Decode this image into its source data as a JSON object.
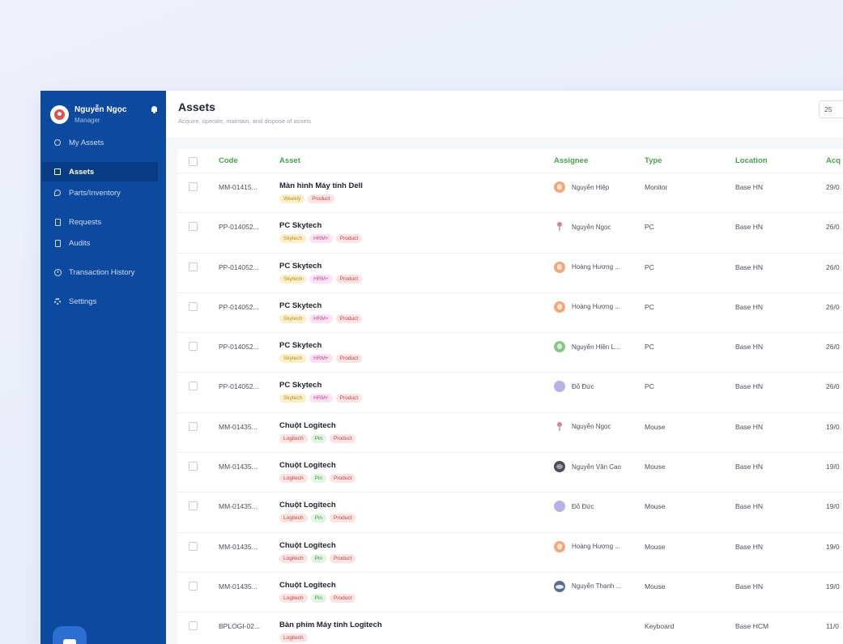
{
  "profile": {
    "name": "Nguyễn Ngọc",
    "role": "Manager"
  },
  "nav": {
    "my_assets": "My Assets",
    "assets": "Assets",
    "parts": "Parts/Inventory",
    "requests": "Requests",
    "audits": "Audits",
    "history": "Transaction History",
    "settings": "Settings"
  },
  "header": {
    "title": "Assets",
    "subtitle": "Acquire, operate, maintain, and dispose of assets",
    "filter_value": "25"
  },
  "table": {
    "headers": {
      "code": "Code",
      "asset": "Asset",
      "assignee": "Assignee",
      "type": "Type",
      "location": "Location",
      "acq": "Acq"
    },
    "rows": [
      {
        "code": "MM-01415...",
        "name": "Màn hình Máy tính Dell",
        "tags": [
          {
            "text": "Weekly",
            "color": "yellow"
          },
          {
            "text": "Product",
            "color": "red"
          }
        ],
        "assignee": "Nguyễn Hiệp",
        "avatar": "orange",
        "type": "Monitor",
        "location": "Base HN",
        "acq": "29/0"
      },
      {
        "code": "PP-014052...",
        "name": "PC Skytech",
        "tags": [
          {
            "text": "Skytech",
            "color": "yellow"
          },
          {
            "text": "HRM+",
            "color": "pink"
          },
          {
            "text": "Product",
            "color": "red"
          }
        ],
        "assignee": "Nguyễn Ngọc",
        "avatar": "pin",
        "type": "PC",
        "location": "Base HN",
        "acq": "26/0"
      },
      {
        "code": "PP-014052...",
        "name": "PC Skytech",
        "tags": [
          {
            "text": "Skytech",
            "color": "yellow"
          },
          {
            "text": "HRM+",
            "color": "pink"
          },
          {
            "text": "Product",
            "color": "red"
          }
        ],
        "assignee": "Hoàng Hương ...",
        "avatar": "orange",
        "type": "PC",
        "location": "Base HN",
        "acq": "26/0"
      },
      {
        "code": "PP-014052...",
        "name": "PC Skytech",
        "tags": [
          {
            "text": "Skytech",
            "color": "yellow"
          },
          {
            "text": "HRM+",
            "color": "pink"
          },
          {
            "text": "Product",
            "color": "red"
          }
        ],
        "assignee": "Hoàng Hương ...",
        "avatar": "orange",
        "type": "PC",
        "location": "Base HN",
        "acq": "26/0"
      },
      {
        "code": "PP-014052...",
        "name": "PC Skytech",
        "tags": [
          {
            "text": "Skytech",
            "color": "yellow"
          },
          {
            "text": "HRM+",
            "color": "pink"
          },
          {
            "text": "Product",
            "color": "red"
          }
        ],
        "assignee": "Nguyễn Hiền L...",
        "avatar": "green",
        "type": "PC",
        "location": "Base HN",
        "acq": "26/0"
      },
      {
        "code": "PP-014052...",
        "name": "PC Skytech",
        "tags": [
          {
            "text": "Skytech",
            "color": "yellow"
          },
          {
            "text": "HRM+",
            "color": "pink"
          },
          {
            "text": "Product",
            "color": "red"
          }
        ],
        "assignee": "Đỗ Đức",
        "avatar": "purple",
        "type": "PC",
        "location": "Base HN",
        "acq": "26/0"
      },
      {
        "code": "MM-01435...",
        "name": "Chuột Logitech",
        "tags": [
          {
            "text": "Logitech",
            "color": "red"
          },
          {
            "text": "Pin",
            "color": "green"
          },
          {
            "text": "Product",
            "color": "red"
          }
        ],
        "assignee": "Nguyễn Ngọc",
        "avatar": "pin",
        "type": "Mouse",
        "location": "Base HN",
        "acq": "19/0"
      },
      {
        "code": "MM-01435...",
        "name": "Chuột Logitech",
        "tags": [
          {
            "text": "Logitech",
            "color": "red"
          },
          {
            "text": "Pin",
            "color": "green"
          },
          {
            "text": "Product",
            "color": "red"
          }
        ],
        "assignee": "Nguyễn Văn Cao",
        "avatar": "dark",
        "type": "Mouse",
        "location": "Base HN",
        "acq": "19/0"
      },
      {
        "code": "MM-01435...",
        "name": "Chuột Logitech",
        "tags": [
          {
            "text": "Logitech",
            "color": "red"
          },
          {
            "text": "Pin",
            "color": "green"
          },
          {
            "text": "Product",
            "color": "red"
          }
        ],
        "assignee": "Đỗ Đức",
        "avatar": "purple",
        "type": "Mouse",
        "location": "Base HN",
        "acq": "19/0"
      },
      {
        "code": "MM-01435...",
        "name": "Chuột Logitech",
        "tags": [
          {
            "text": "Logitech",
            "color": "red"
          },
          {
            "text": "Pin",
            "color": "green"
          },
          {
            "text": "Product",
            "color": "red"
          }
        ],
        "assignee": "Hoàng Hương ...",
        "avatar": "orange",
        "type": "Mouse",
        "location": "Base HN",
        "acq": "19/0"
      },
      {
        "code": "MM-01435...",
        "name": "Chuột Logitech",
        "tags": [
          {
            "text": "Logitech",
            "color": "red"
          },
          {
            "text": "Pin",
            "color": "green"
          },
          {
            "text": "Product",
            "color": "red"
          }
        ],
        "assignee": "Nguyễn Thanh ...",
        "avatar": "blue",
        "type": "Mouse",
        "location": "Base HN",
        "acq": "19/0"
      },
      {
        "code": "BPLOGI-02...",
        "name": "Bàn phím Máy tính Logitech",
        "tags": [
          {
            "text": "Logitech",
            "color": "red"
          }
        ],
        "assignee": "",
        "avatar": "",
        "type": "Keyboard",
        "location": "Base HCM",
        "acq": "11/0"
      }
    ]
  }
}
